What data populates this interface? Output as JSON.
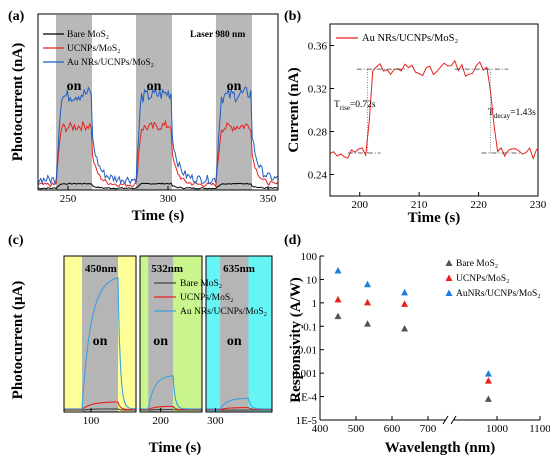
{
  "chart_data": [
    {
      "panel": "(a)",
      "type": "line",
      "xlabel": "Time (s)",
      "ylabel": "Photocurrent (nA)",
      "xlim": [
        235,
        355
      ],
      "ylim": [
        0,
        0.2
      ],
      "xticks": [
        250,
        300,
        350
      ],
      "annotation": "Laser 980 nm",
      "on_label": "on",
      "on_periods": [
        [
          244,
          262
        ],
        [
          284,
          302
        ],
        [
          324,
          342
        ]
      ],
      "series": [
        {
          "name": "Bare MoS₂",
          "color": "#000000",
          "baseline": 0.002,
          "on_level": 0.007
        },
        {
          "name": "UCNPs/MoS₂",
          "color": "#e8211c",
          "baseline": 0.006,
          "on_level": 0.07
        },
        {
          "name": "Au NRs/UCNPs/MoS₂",
          "color": "#1f5fc2",
          "baseline": 0.012,
          "on_level": 0.105
        }
      ]
    },
    {
      "panel": "(b)",
      "type": "line",
      "xlabel": "Time (s)",
      "ylabel": "Current (nA)",
      "xlim": [
        195,
        230
      ],
      "ylim": [
        0.22,
        0.38
      ],
      "xticks": [
        200,
        210,
        220,
        230
      ],
      "yticks": [
        0.24,
        0.28,
        0.32,
        0.36
      ],
      "series": [
        {
          "name": "Au NRs/UCNPs/MoS₂",
          "color": "#e8211c"
        }
      ],
      "rise_label": "T",
      "rise_sub": "rise",
      "rise_value": "=0.72s",
      "decay_label": "T",
      "decay_sub": "decay",
      "decay_value": "=1.43s",
      "on_start": 201.3,
      "on_end": 221.6,
      "low_level": 0.26,
      "high_level": 0.338
    },
    {
      "panel": "(c)",
      "type": "line",
      "xlabel": "Time (s)",
      "ylabel": "Photocurrent (μA)",
      "xticks": [
        100,
        200,
        300
      ],
      "ylim": [
        0,
        2.5
      ],
      "on_label": "on",
      "segments": [
        {
          "wavelength": "450nm",
          "bg": "#ffff99",
          "xlim": [
            70,
            150
          ],
          "on": [
            90,
            130
          ],
          "peaks": [
            0.05,
            0.16,
            2.15
          ]
        },
        {
          "wavelength": "532nm",
          "bg": "#c9f58c",
          "xlim": [
            175,
            250
          ],
          "on": [
            185,
            215
          ],
          "peaks": [
            0.04,
            0.09,
            0.58
          ]
        },
        {
          "wavelength": "635nm",
          "bg": "#66f5f5",
          "xlim": [
            290,
            360
          ],
          "on": [
            305,
            335
          ],
          "peaks": [
            0.03,
            0.07,
            0.22
          ]
        }
      ],
      "series": [
        {
          "name": "Bare MoS₂",
          "color": "#444444"
        },
        {
          "name": "UCNPs/MoS₂",
          "color": "#e8211c"
        },
        {
          "name": "Au NRs/UCNPs/MoS₂",
          "color": "#3aa0e0"
        }
      ]
    },
    {
      "panel": "(d)",
      "type": "scatter",
      "xlabel": "Wavelength (nm)",
      "ylabel": "Responsivity (A/W)",
      "yscale": "log",
      "ylim": [
        1e-05,
        100
      ],
      "yticks": [
        "1E-5",
        "1E-4",
        "0.001",
        "0.01",
        "0.1",
        "1",
        "10",
        "100"
      ],
      "xticks": [
        400,
        500,
        600,
        700,
        1000,
        1100
      ],
      "axis_break": true,
      "series": [
        {
          "name": "Bare MoS₂",
          "color": "#555555",
          "x": [
            450,
            532,
            635,
            980
          ],
          "y": [
            0.27,
            0.13,
            0.08,
            8e-05
          ]
        },
        {
          "name": "UCNPs/MoS₂",
          "color": "#e8211c",
          "x": [
            450,
            532,
            635,
            980
          ],
          "y": [
            1.4,
            1.05,
            0.9,
            0.00048
          ]
        },
        {
          "name": "AuNRs/UCNPs/MoS₂",
          "color": "#1f7fe0",
          "x": [
            450,
            532,
            635,
            980
          ],
          "y": [
            24,
            6.2,
            2.8,
            0.00095
          ]
        }
      ]
    }
  ]
}
